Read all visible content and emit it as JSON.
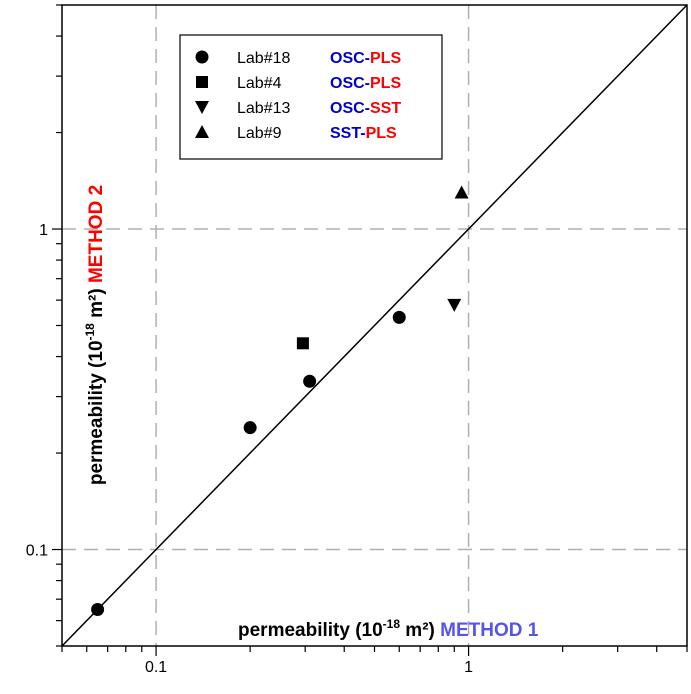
{
  "chart_data": {
    "type": "scatter",
    "x_scale": "log",
    "y_scale": "log",
    "xlim": [
      0.05,
      5
    ],
    "ylim": [
      0.05,
      5
    ],
    "grid": true,
    "grid_style": "dashed",
    "x_ticks": [
      0.1,
      1
    ],
    "x_tick_labels": [
      "0.1",
      "1"
    ],
    "y_ticks": [
      0.1,
      1
    ],
    "y_tick_labels": [
      "0.1",
      "1"
    ],
    "xlabel": {
      "prefix": "permeability (10",
      "superscript": "-18",
      "unit": " m²) ",
      "method": "METHOD 1",
      "method_color": "#5555ee"
    },
    "ylabel": {
      "prefix": "permeability (10",
      "superscript": "-18",
      "unit": " m²) ",
      "method": "METHOD 2",
      "method_color": "#ff0000"
    },
    "reference_line": {
      "type": "y=x",
      "color": "#000000"
    },
    "legend_position": "top-center",
    "colors": {
      "blue": "#0000cc",
      "red": "#ff0000"
    },
    "series": [
      {
        "name": "Lab#18",
        "marker": "circle",
        "method_parts": [
          {
            "text": "OSC",
            "color": "blue"
          },
          {
            "text": "-",
            "color": "blue"
          },
          {
            "text": "PLS",
            "color": "red"
          }
        ],
        "points": [
          [
            0.065,
            0.065
          ],
          [
            0.2,
            0.24
          ],
          [
            0.31,
            0.335
          ],
          [
            0.6,
            0.53
          ]
        ]
      },
      {
        "name": "Lab#4",
        "marker": "square",
        "method_parts": [
          {
            "text": "OSC",
            "color": "blue"
          },
          {
            "text": "-",
            "color": "blue"
          },
          {
            "text": "PLS",
            "color": "red"
          }
        ],
        "points": [
          [
            0.295,
            0.44
          ]
        ]
      },
      {
        "name": "Lab#13",
        "marker": "triangle-down",
        "method_parts": [
          {
            "text": "OSC",
            "color": "blue"
          },
          {
            "text": "-",
            "color": "blue"
          },
          {
            "text": "SST",
            "color": "red"
          }
        ],
        "points": [
          [
            0.9,
            0.58
          ]
        ]
      },
      {
        "name": "Lab#9",
        "marker": "triangle-up",
        "method_parts": [
          {
            "text": "SST",
            "color": "blue"
          },
          {
            "text": "-",
            "color": "blue"
          },
          {
            "text": "PLS",
            "color": "red"
          }
        ],
        "points": [
          [
            0.95,
            1.3
          ]
        ]
      }
    ]
  }
}
